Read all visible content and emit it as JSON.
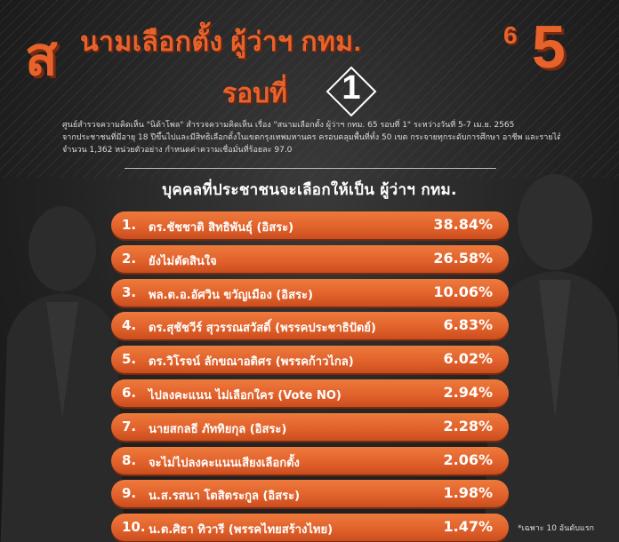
{
  "header": {
    "big_left": "ส",
    "title": "นามเลือกตั้ง ผู้ว่าฯ กทม.",
    "title_six": "6",
    "big_right": "5",
    "round_label": "รอบที่",
    "round_number": "1"
  },
  "info_lines": [
    "ศูนย์สำรวจความคิดเห็น \"นิด้าโพล\" สำรวจความคิดเห็น เรื่อง \"สนามเลือกตั้ง ผู้ว่าฯ กทม. 65 รอบที่ 1\" ระหว่างวันที่ 5-7 เม.ย. 2565",
    "จากประชาชนที่มีอายุ 18 ปีขึ้นไปและมีสิทธิเลือกตั้งในเขตกรุงเทพมหานคร ครอบคลุมพื้นที่ทั้ง 50 เขต กระจายทุกระดับการศึกษา อาชีพ และรายได้",
    "จำนวน 1,362 หน่วยตัวอย่าง กำหนดค่าความเชื่อมั่นที่ร้อยละ 97.0"
  ],
  "list_title": "บุคคลที่ประชาชนจะเลือกให้เป็น ผู้ว่าฯ กทม.",
  "candidates": [
    {
      "rank": "1.",
      "name": "ดร.ชัชชาติ สิทธิพันธุ์ (อิสระ)",
      "percent": "38.84%"
    },
    {
      "rank": "2.",
      "name": "ยังไม่ตัดสินใจ",
      "percent": "26.58%"
    },
    {
      "rank": "3.",
      "name": "พล.ต.อ.อัศวิน ขวัญเมือง (อิสระ)",
      "percent": "10.06%"
    },
    {
      "rank": "4.",
      "name": "ดร.สุชัชวีร์ สุวรรณสวัสดิ์ (พรรคประชาธิปัตย์)",
      "percent": "6.83%"
    },
    {
      "rank": "5.",
      "name": "ดร.วิโรจน์ ลักขณาอดิศร (พรรคก้าวไกล)",
      "percent": "6.02%"
    },
    {
      "rank": "6.",
      "name": "ไปลงคะแนน ไม่เลือกใคร (Vote NO)",
      "percent": "2.94%"
    },
    {
      "rank": "7.",
      "name": "นายสกลธี ภัททิยกุล (อิสระ)",
      "percent": "2.28%"
    },
    {
      "rank": "8.",
      "name": "จะไม่ไปลงคะแนนเสียงเลือกตั้ง",
      "percent": "2.06%"
    },
    {
      "rank": "9.",
      "name": "น.ส.รสนา โตสิตระกูล (อิสระ)",
      "percent": "1.98%"
    },
    {
      "rank": "10.",
      "name": "น.ต.ศิธา ทิวารี (พรรคไทยสร้างไทย)",
      "percent": "1.47%"
    }
  ],
  "footnote": "*เฉพาะ 10 อันดับแรก",
  "colors": {
    "accent": "#e8632b",
    "pill": "#e0602a",
    "background": "#232323",
    "text": "#ffffff"
  }
}
